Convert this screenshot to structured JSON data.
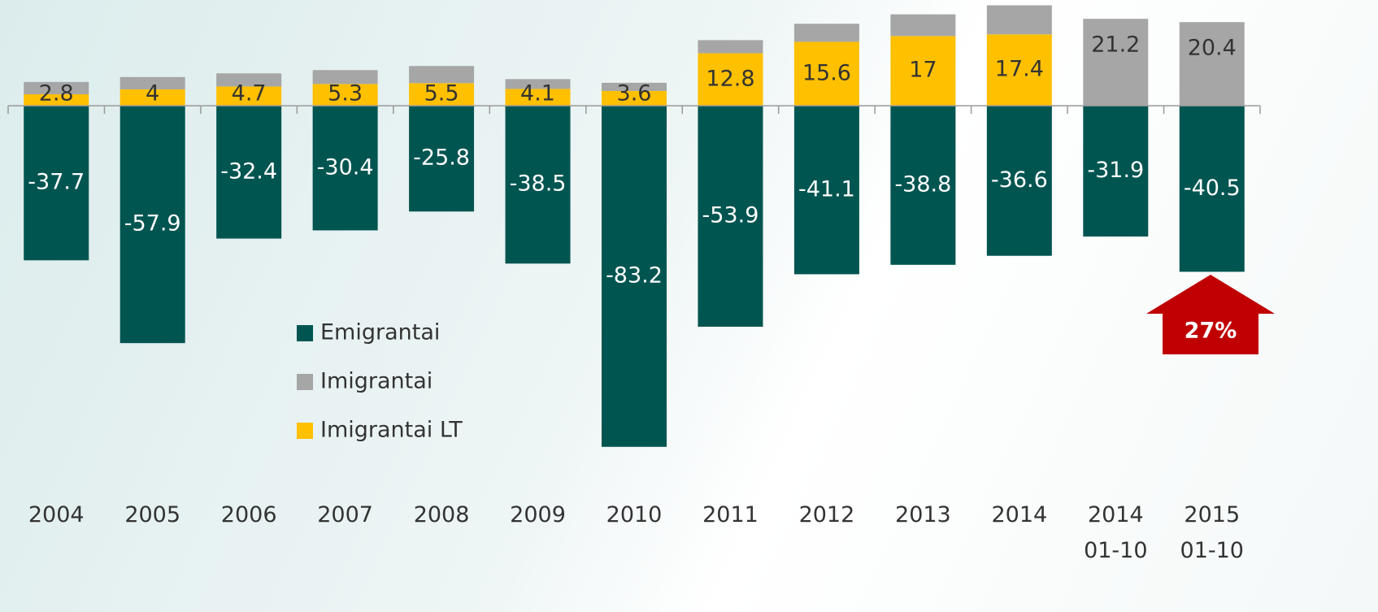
{
  "chart_data": {
    "type": "stacked_bar",
    "categories": [
      "2004",
      "2005",
      "2006",
      "2007",
      "2008",
      "2009",
      "2010",
      "2011",
      "2012",
      "2013",
      "2014",
      "2014 01-10",
      "2015 01-10"
    ],
    "series": [
      {
        "name": "Emigrantai",
        "color": "#005551",
        "values": [
          -37.7,
          -57.9,
          -32.4,
          -30.4,
          -25.8,
          -38.5,
          -83.2,
          -53.9,
          -41.1,
          -38.8,
          -36.6,
          -31.9,
          -40.5
        ]
      },
      {
        "name": "Imigrantai",
        "color": "#a6a6a6",
        "values": [
          3.0,
          3.0,
          3.2,
          3.4,
          4.2,
          2.4,
          2.0,
          3.2,
          4.4,
          5.3,
          7.1,
          21.2,
          20.4
        ],
        "labeled": [
          false,
          false,
          false,
          false,
          false,
          false,
          false,
          false,
          false,
          false,
          false,
          true,
          true
        ]
      },
      {
        "name": "Imigrantai LT",
        "color": "#ffc000",
        "values": [
          2.8,
          4.0,
          4.7,
          5.3,
          5.5,
          4.1,
          3.6,
          12.8,
          15.6,
          17.0,
          17.4,
          null,
          null
        ]
      }
    ],
    "ylim": [
      -88,
      25
    ],
    "annotation": "27%",
    "annotation_color": "#c00000",
    "legend": "center"
  }
}
